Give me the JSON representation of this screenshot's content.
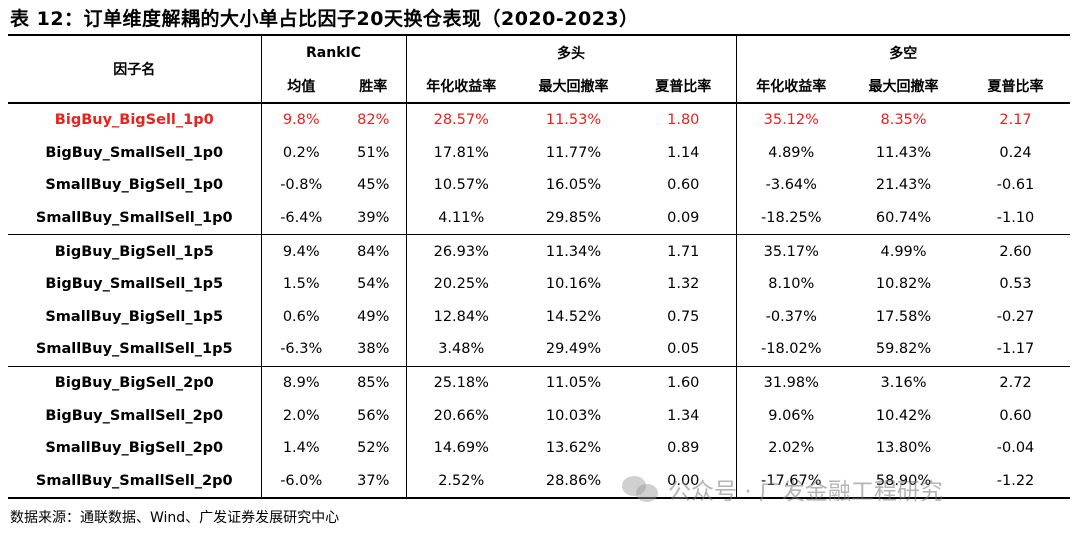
{
  "title": "表 12：订单维度解耦的大小单占比因子20天换仓表现（2020-2023）",
  "header": {
    "factor": "因子名",
    "rankic": "RankIC",
    "long": "多头",
    "longshort": "多空",
    "mean": "均值",
    "winrate": "胜率",
    "ann_return": "年化收益率",
    "max_drawdown": "最大回撤率",
    "sharpe": "夏普比率"
  },
  "rows": [
    {
      "name": "BigBuy_BigSell_1p0",
      "mean": "9.8%",
      "win": "82%",
      "l_ret": "28.57%",
      "l_dd": "11.53%",
      "l_sh": "1.80",
      "ls_ret": "35.12%",
      "ls_dd": "8.35%",
      "ls_sh": "2.17",
      "highlight": true
    },
    {
      "name": "BigBuy_SmallSell_1p0",
      "mean": "0.2%",
      "win": "51%",
      "l_ret": "17.81%",
      "l_dd": "11.77%",
      "l_sh": "1.14",
      "ls_ret": "4.89%",
      "ls_dd": "11.43%",
      "ls_sh": "0.24"
    },
    {
      "name": "SmallBuy_BigSell_1p0",
      "mean": "-0.8%",
      "win": "45%",
      "l_ret": "10.57%",
      "l_dd": "16.05%",
      "l_sh": "0.60",
      "ls_ret": "-3.64%",
      "ls_dd": "21.43%",
      "ls_sh": "-0.61"
    },
    {
      "name": "SmallBuy_SmallSell_1p0",
      "mean": "-6.4%",
      "win": "39%",
      "l_ret": "4.11%",
      "l_dd": "29.85%",
      "l_sh": "0.09",
      "ls_ret": "-18.25%",
      "ls_dd": "60.74%",
      "ls_sh": "-1.10"
    },
    {
      "name": "BigBuy_BigSell_1p5",
      "mean": "9.4%",
      "win": "84%",
      "l_ret": "26.93%",
      "l_dd": "11.34%",
      "l_sh": "1.71",
      "ls_ret": "35.17%",
      "ls_dd": "4.99%",
      "ls_sh": "2.60"
    },
    {
      "name": "BigBuy_SmallSell_1p5",
      "mean": "1.5%",
      "win": "54%",
      "l_ret": "20.25%",
      "l_dd": "10.16%",
      "l_sh": "1.32",
      "ls_ret": "8.10%",
      "ls_dd": "10.82%",
      "ls_sh": "0.53"
    },
    {
      "name": "SmallBuy_BigSell_1p5",
      "mean": "0.6%",
      "win": "49%",
      "l_ret": "12.84%",
      "l_dd": "14.52%",
      "l_sh": "0.75",
      "ls_ret": "-0.37%",
      "ls_dd": "17.58%",
      "ls_sh": "-0.27"
    },
    {
      "name": "SmallBuy_SmallSell_1p5",
      "mean": "-6.3%",
      "win": "38%",
      "l_ret": "3.48%",
      "l_dd": "29.49%",
      "l_sh": "0.05",
      "ls_ret": "-18.02%",
      "ls_dd": "59.82%",
      "ls_sh": "-1.17"
    },
    {
      "name": "BigBuy_BigSell_2p0",
      "mean": "8.9%",
      "win": "85%",
      "l_ret": "25.18%",
      "l_dd": "11.05%",
      "l_sh": "1.60",
      "ls_ret": "31.98%",
      "ls_dd": "3.16%",
      "ls_sh": "2.72"
    },
    {
      "name": "BigBuy_SmallSell_2p0",
      "mean": "2.0%",
      "win": "56%",
      "l_ret": "20.66%",
      "l_dd": "10.03%",
      "l_sh": "1.34",
      "ls_ret": "9.06%",
      "ls_dd": "10.42%",
      "ls_sh": "0.60"
    },
    {
      "name": "SmallBuy_BigSell_2p0",
      "mean": "1.4%",
      "win": "52%",
      "l_ret": "14.69%",
      "l_dd": "13.62%",
      "l_sh": "0.89",
      "ls_ret": "2.02%",
      "ls_dd": "13.80%",
      "ls_sh": "-0.04"
    },
    {
      "name": "SmallBuy_SmallSell_2p0",
      "mean": "-6.0%",
      "win": "37%",
      "l_ret": "2.52%",
      "l_dd": "28.86%",
      "l_sh": "0.00",
      "ls_ret": "-17.67%",
      "ls_dd": "58.90%",
      "ls_sh": "-1.22"
    }
  ],
  "highlight_color": "#e8221c",
  "footer": "数据来源：通联数据、Wind、广发证券发展研究中心",
  "watermark": "公众号 · 广发金融工程研究"
}
